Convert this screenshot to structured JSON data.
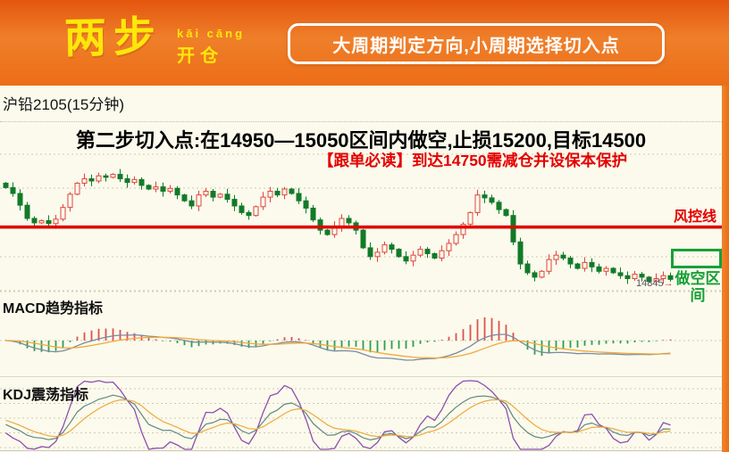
{
  "header": {
    "logo_main": "两步",
    "logo_pinyin": "kāi cāng",
    "logo_sub": "开仓",
    "banner": "大周期判定方向,小周期选择切入点"
  },
  "chart_header": {
    "title": "沪铅2105(15分钟)"
  },
  "signals": {
    "entry_instruction": "第二步切入点:在14950—15050区间内做空,止损15200,目标14500",
    "follow_note": "【跟单必读】到达14750需减仓并设保本保护",
    "risk_line_label": "风控线",
    "short_zone_label": "做空区间",
    "last_price": "14845",
    "arrow": "→"
  },
  "panes": {
    "macd_label": "MACD趋势指标",
    "kdj_label": "KDJ震荡指标"
  },
  "colors": {
    "accent_orange": "#ED7C20",
    "candle_up": "#E0443C",
    "candle_down": "#117A28",
    "risk_line": "#E10505",
    "zone_green": "#18A038",
    "macd_dif": "#7A8BA0",
    "macd_dea": "#F1A83C",
    "hist_up": "#E05050",
    "hist_down": "#2E9E4F",
    "kdj_k": "#608880",
    "kdj_d": "#F1A83C",
    "kdj_j": "#8C4FB0",
    "grid": "#CCCCB8",
    "background": "#FBFAEC"
  },
  "chart_data": {
    "type": "candlestick+indicators",
    "instrument": "沪铅2105",
    "interval": "15分钟",
    "ylim": [
      14750,
      15600
    ],
    "risk_line_price": 15200,
    "short_zone": [
      14950,
      15050
    ],
    "stop_loss": 15200,
    "target": 14500,
    "last_price": 14845,
    "open_first": 15500,
    "closes": [
      15470,
      15430,
      15350,
      15260,
      15230,
      15245,
      15225,
      15255,
      15335,
      15425,
      15500,
      15530,
      15515,
      15550,
      15540,
      15560,
      15530,
      15505,
      15525,
      15485,
      15460,
      15475,
      15445,
      15465,
      15420,
      15380,
      15345,
      15420,
      15445,
      15405,
      15425,
      15390,
      15345,
      15300,
      15280,
      15340,
      15405,
      15445,
      15420,
      15460,
      15430,
      15380,
      15330,
      15250,
      15180,
      15150,
      15205,
      15260,
      15230,
      15180,
      15060,
      15000,
      15030,
      15080,
      15050,
      15000,
      14970,
      15010,
      15050,
      15020,
      14990,
      15040,
      15090,
      15150,
      15220,
      15300,
      15420,
      15400,
      15370,
      15320,
      15280,
      15100,
      14950,
      14890,
      14860,
      14900,
      14980,
      15010,
      14990,
      14950,
      14920,
      14960,
      14930,
      14900,
      14920,
      14890,
      14870,
      14850,
      14880,
      14860,
      14830,
      14850,
      14870,
      14845
    ],
    "indicators": [
      "MACD(12,26,9)",
      "KDJ(9,3,3)"
    ]
  }
}
